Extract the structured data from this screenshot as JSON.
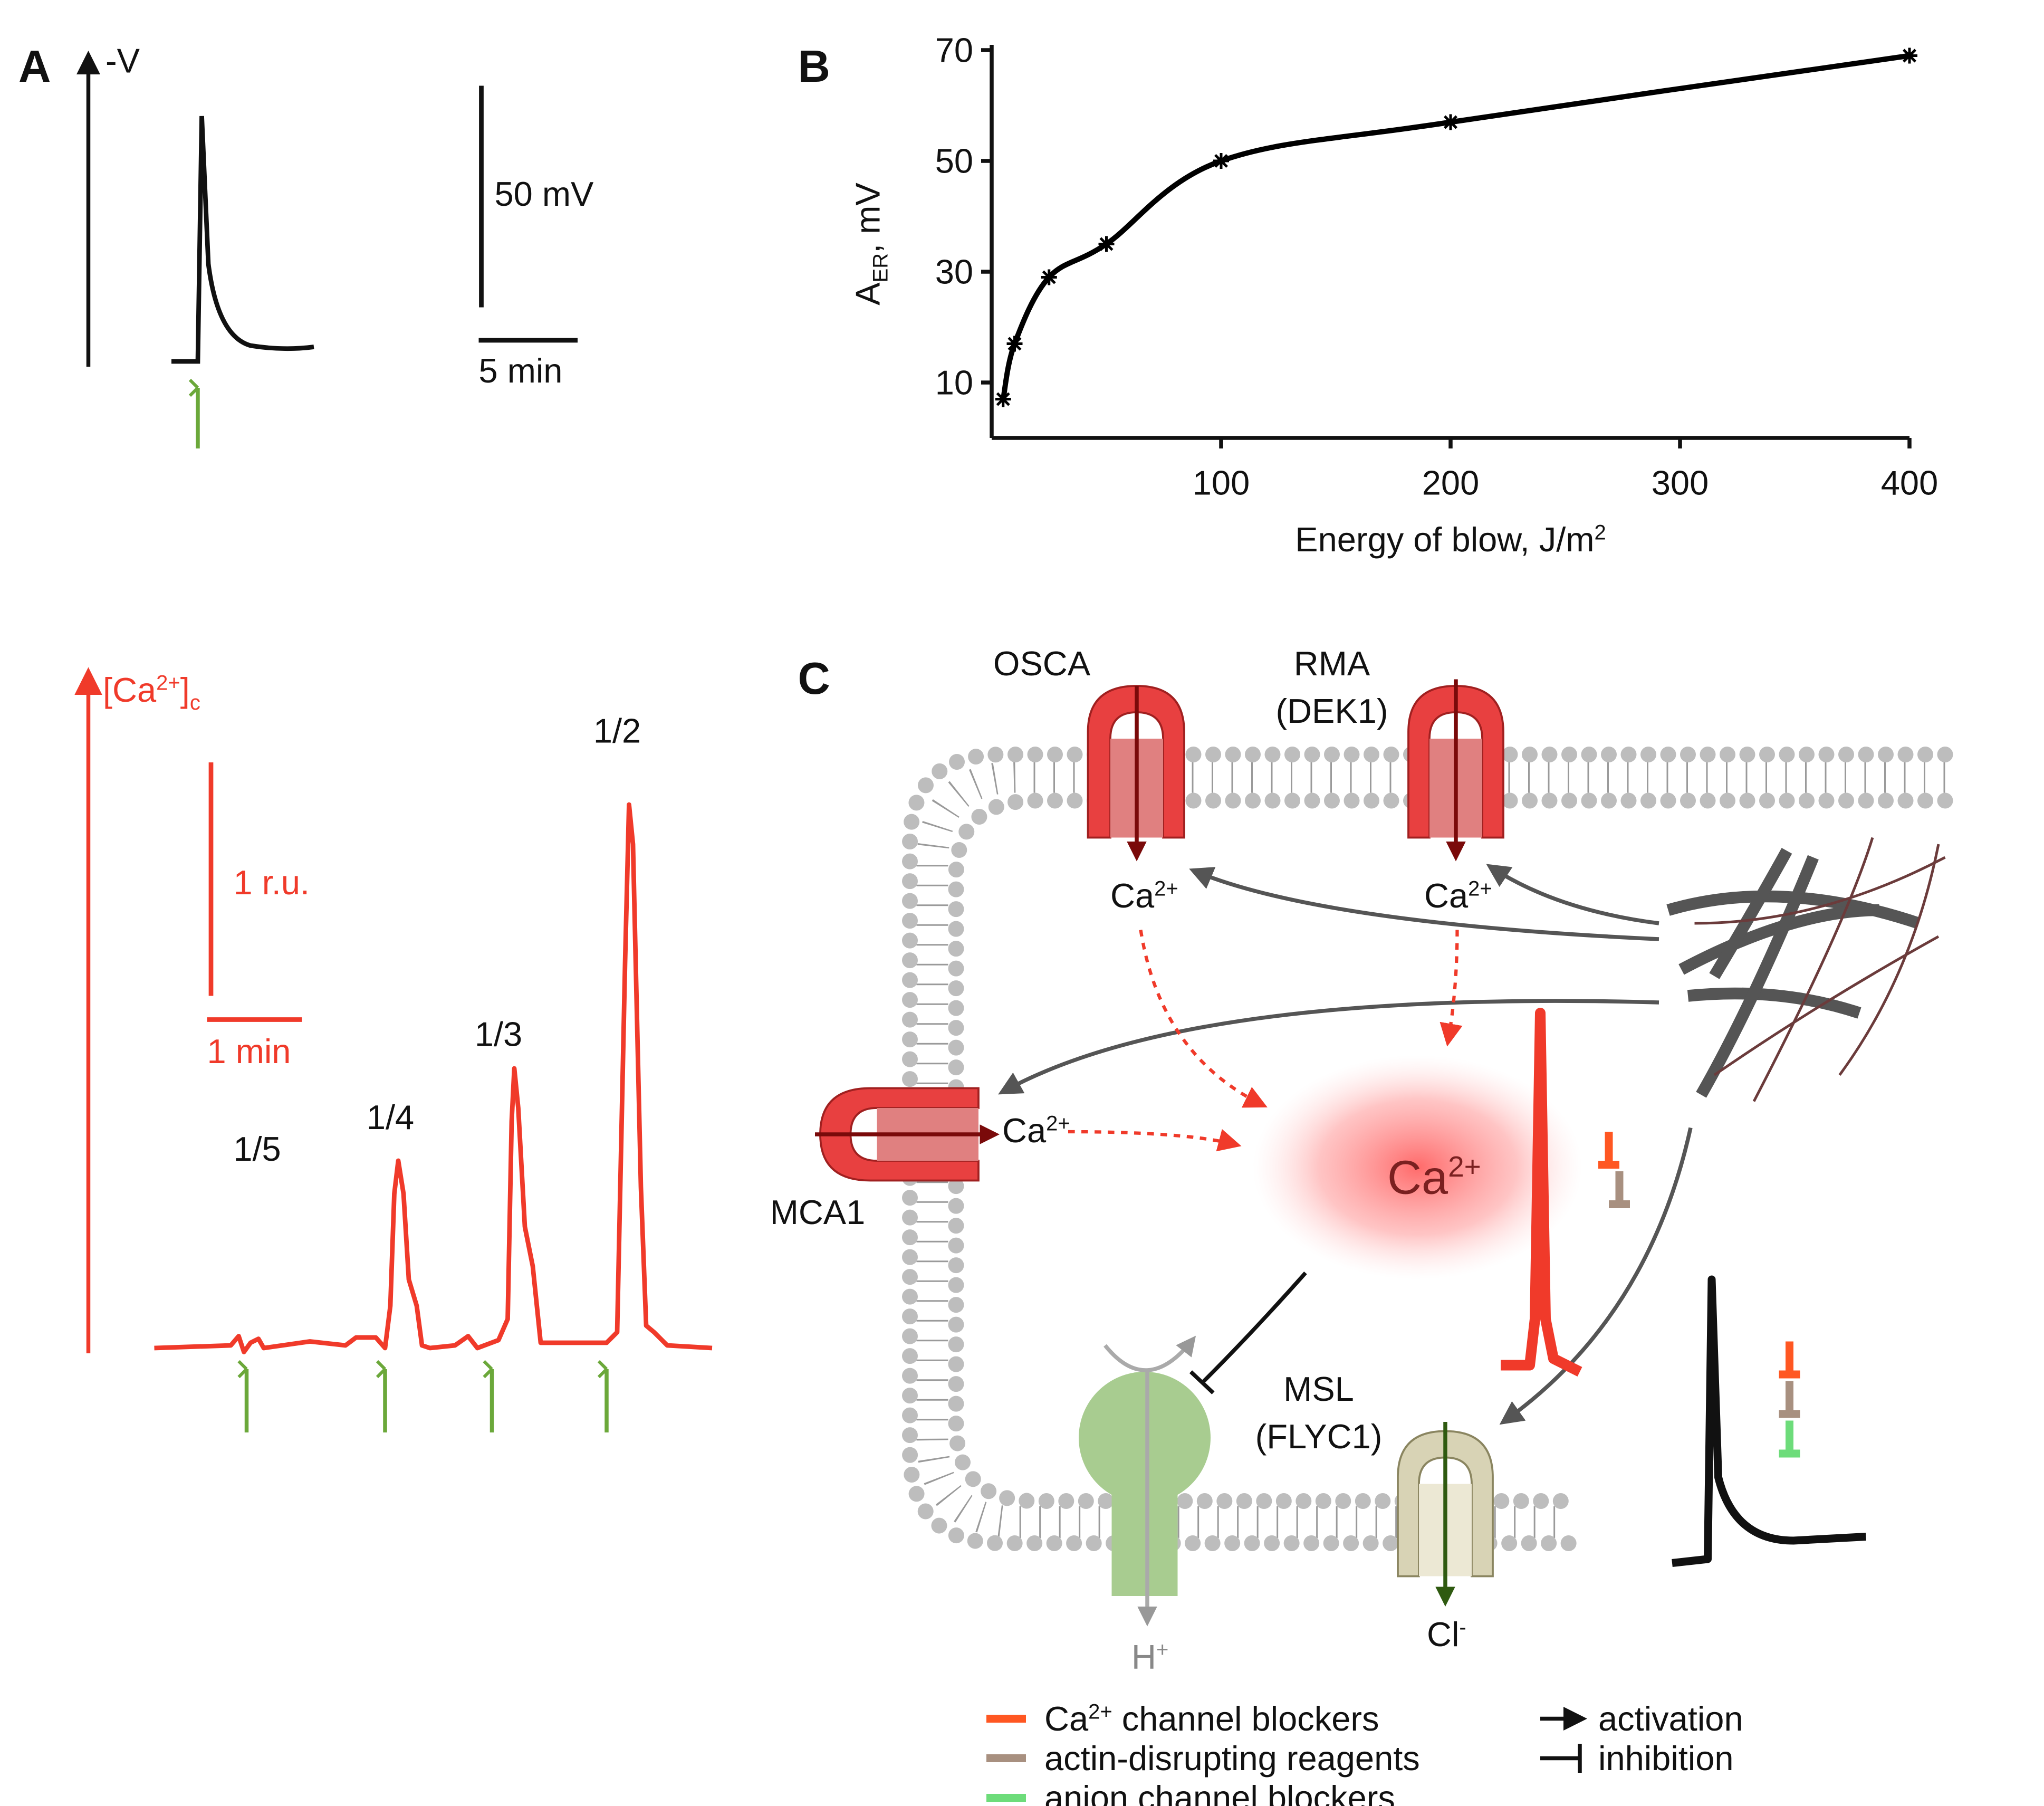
{
  "panel_a": {
    "label": "A",
    "voltage_axis": "-V",
    "voltage_scale": "50 mV",
    "time_scale": "5 min",
    "calcium_axis": {
      "base": "[Ca",
      "sup": "2+",
      "rest": "]",
      "sub": "c"
    },
    "calcium_scale": "1 r.u.",
    "calcium_time_scale": "1 min",
    "stimuli": [
      "1/5",
      "1/4",
      "1/3",
      "1/2"
    ]
  },
  "chart_data": {
    "type": "scatter",
    "panel_label": "B",
    "x_label": {
      "base": "Energy of blow, J/m",
      "sup": "2"
    },
    "y_label": {
      "base": "A",
      "sub": "ER",
      "rest": ", mV"
    },
    "x": [
      5,
      10,
      25,
      50,
      100,
      200,
      400
    ],
    "values": [
      7,
      17,
      29,
      35,
      50,
      57,
      69
    ],
    "color": "#000000",
    "line": true,
    "xlim": [
      0,
      400
    ],
    "ylim": [
      0,
      70
    ],
    "xticks": [
      100,
      200,
      300,
      400
    ],
    "yticks": [
      10,
      30,
      50,
      70
    ]
  },
  "panel_c": {
    "label": "C",
    "channels": {
      "osca": "OSCA",
      "rma": [
        "RMA",
        "(DEK1)"
      ],
      "mca1": "MCA1",
      "msl": [
        "MSL",
        "(FLYC1)"
      ]
    },
    "ion_ca": {
      "base": "Ca",
      "sup": "2+"
    },
    "ion_h": {
      "base": "H",
      "sup": "+"
    },
    "ion_cl": {
      "base": "Cl",
      "sup": "-"
    },
    "legend": [
      {
        "base": "Ca",
        "sup": "2+",
        "rest": " channel blockers",
        "color": "#ff5722"
      },
      {
        "text": "actin-disrupting reagents",
        "color": "#a89080"
      },
      {
        "text": "anion channel blockers",
        "color": "#6ddc7a"
      }
    ],
    "arrow_legend": [
      "activation",
      "inhibition"
    ]
  }
}
